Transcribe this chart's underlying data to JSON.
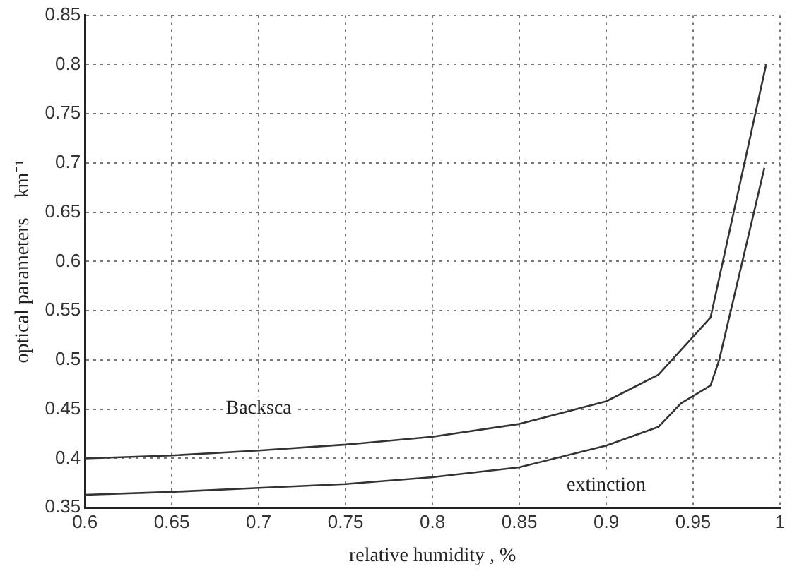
{
  "chart_data": {
    "type": "line",
    "xlabel": "relative humidity , %",
    "ylabel": "optical parameters    km⁻¹",
    "xlim": [
      0.6,
      1
    ],
    "xticks": [
      0.6,
      0.65,
      0.7,
      0.75,
      0.8,
      0.85,
      0.9,
      0.95,
      1
    ],
    "ylim": [
      0.35,
      0.85
    ],
    "yticks": [
      0.35,
      0.4,
      0.45,
      0.5,
      0.55,
      0.6,
      0.65,
      0.7,
      0.75,
      0.8,
      0.85
    ],
    "grid": true,
    "legend": false,
    "marker": "none",
    "line_style": "solid",
    "series": [
      {
        "name": "Backsca",
        "color": "#333333",
        "x": [
          0.6,
          0.65,
          0.7,
          0.75,
          0.8,
          0.85,
          0.9,
          0.93,
          0.96,
          0.992
        ],
        "values": [
          0.4,
          0.403,
          0.408,
          0.414,
          0.422,
          0.435,
          0.458,
          0.485,
          0.543,
          0.8
        ]
      },
      {
        "name": "extinction",
        "color": "#333333",
        "x": [
          0.6,
          0.65,
          0.7,
          0.75,
          0.8,
          0.85,
          0.9,
          0.93,
          0.943,
          0.96,
          0.965,
          0.991
        ],
        "values": [
          0.363,
          0.366,
          0.37,
          0.374,
          0.381,
          0.391,
          0.413,
          0.432,
          0.456,
          0.474,
          0.5,
          0.695
        ]
      }
    ]
  }
}
